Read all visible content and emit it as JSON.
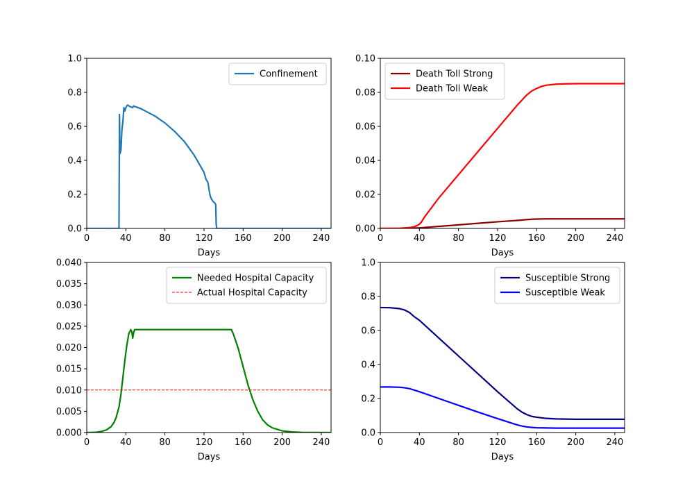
{
  "chart_data": [
    {
      "type": "line",
      "xlabel": "Days",
      "ylabel": "",
      "xlim": [
        0,
        250
      ],
      "ylim": [
        0,
        1.0
      ],
      "xticks": [
        0,
        40,
        80,
        120,
        160,
        200,
        240
      ],
      "yticks": [
        0.0,
        0.2,
        0.4,
        0.6,
        0.8,
        1.0
      ],
      "ytick_labels": [
        "0.0",
        "0.2",
        "0.4",
        "0.6",
        "0.8",
        "1.0"
      ],
      "legend": "top-right",
      "series": [
        {
          "name": "Confinement",
          "color": "#1f77b4",
          "dashed": false,
          "x": [
            0,
            33,
            33.5,
            34,
            35,
            36,
            37,
            38,
            39,
            40,
            41,
            42,
            43,
            45,
            47,
            48,
            50,
            55,
            60,
            70,
            80,
            90,
            100,
            110,
            115,
            120,
            122,
            124,
            126,
            127,
            128,
            129,
            130,
            131,
            132,
            132.5,
            133,
            160,
            200,
            250
          ],
          "y": [
            0,
            0,
            0.67,
            0.44,
            0.46,
            0.58,
            0.63,
            0.71,
            0.69,
            0.71,
            0.72,
            0.725,
            0.72,
            0.715,
            0.71,
            0.72,
            0.715,
            0.705,
            0.69,
            0.66,
            0.62,
            0.57,
            0.51,
            0.43,
            0.38,
            0.33,
            0.29,
            0.27,
            0.2,
            0.18,
            0.17,
            0.16,
            0.155,
            0.15,
            0.14,
            0.02,
            0,
            0,
            0,
            0
          ]
        }
      ]
    },
    {
      "type": "line",
      "xlabel": "Days",
      "ylabel": "",
      "xlim": [
        0,
        250
      ],
      "ylim": [
        0,
        0.1
      ],
      "xticks": [
        0,
        40,
        80,
        120,
        160,
        200,
        240
      ],
      "yticks": [
        0.0,
        0.02,
        0.04,
        0.06,
        0.08,
        0.1
      ],
      "ytick_labels": [
        "0.00",
        "0.02",
        "0.04",
        "0.06",
        "0.08",
        "0.10"
      ],
      "legend": "top-left",
      "series": [
        {
          "name": "Death Toll Strong",
          "color": "#8b0000",
          "dashed": false,
          "x": [
            0,
            20,
            30,
            40,
            60,
            80,
            100,
            120,
            140,
            155,
            160,
            170,
            180,
            200,
            250
          ],
          "y": [
            0,
            0,
            0.0001,
            0.0003,
            0.0012,
            0.0021,
            0.003,
            0.0039,
            0.0047,
            0.0054,
            0.0055,
            0.0056,
            0.0056,
            0.0056,
            0.0056
          ]
        },
        {
          "name": "Death Toll Weak",
          "color": "#ff0000",
          "dashed": false,
          "x": [
            0,
            20,
            30,
            35,
            38,
            40,
            42,
            45,
            60,
            80,
            100,
            120,
            140,
            150,
            155,
            160,
            165,
            170,
            180,
            190,
            200,
            250
          ],
          "y": [
            0,
            0.0001,
            0.0005,
            0.001,
            0.0018,
            0.0025,
            0.0037,
            0.0065,
            0.018,
            0.0316,
            0.0452,
            0.0588,
            0.0724,
            0.0785,
            0.0808,
            0.0823,
            0.0835,
            0.0842,
            0.0848,
            0.085,
            0.0851,
            0.0851
          ]
        }
      ]
    },
    {
      "type": "line",
      "xlabel": "Days",
      "ylabel": "",
      "xlim": [
        0,
        250
      ],
      "ylim": [
        0,
        0.04
      ],
      "xticks": [
        0,
        40,
        80,
        120,
        160,
        200,
        240
      ],
      "yticks": [
        0.0,
        0.005,
        0.01,
        0.015,
        0.02,
        0.025,
        0.03,
        0.035,
        0.04
      ],
      "ytick_labels": [
        "0.000",
        "0.005",
        "0.010",
        "0.015",
        "0.020",
        "0.025",
        "0.030",
        "0.035",
        "0.040"
      ],
      "legend": "top-right",
      "series": [
        {
          "name": "Needed Hospital Capacity",
          "color": "#008000",
          "dashed": false,
          "x": [
            0,
            10,
            15,
            20,
            25,
            28,
            30,
            33,
            35,
            37,
            39,
            41,
            43,
            45,
            46,
            47,
            48,
            49,
            50,
            80,
            100,
            120,
            140,
            148,
            150,
            155,
            160,
            165,
            170,
            175,
            180,
            185,
            190,
            200,
            210,
            220,
            230,
            250
          ],
          "y": [
            0,
            8e-05,
            0.00025,
            0.0006,
            0.0014,
            0.0024,
            0.0035,
            0.006,
            0.009,
            0.013,
            0.017,
            0.0205,
            0.0232,
            0.0242,
            0.0238,
            0.0222,
            0.0235,
            0.0242,
            0.0242,
            0.0242,
            0.0242,
            0.0242,
            0.0242,
            0.0242,
            0.0232,
            0.0198,
            0.0155,
            0.0112,
            0.0077,
            0.005,
            0.003,
            0.0018,
            0.0011,
            0.0004,
            0.00015,
            5e-05,
            2e-05,
            0
          ]
        },
        {
          "name": "Actual Hospital Capacity",
          "color": "#ff0000",
          "dashed": true,
          "x": [
            0,
            250
          ],
          "y": [
            0.01,
            0.01
          ]
        }
      ]
    },
    {
      "type": "line",
      "xlabel": "Days",
      "ylabel": "",
      "xlim": [
        0,
        250
      ],
      "ylim": [
        0,
        1.0
      ],
      "xticks": [
        0,
        40,
        80,
        120,
        160,
        200,
        240
      ],
      "yticks": [
        0.0,
        0.2,
        0.4,
        0.6,
        0.8,
        1.0
      ],
      "ytick_labels": [
        "0.0",
        "0.2",
        "0.4",
        "0.6",
        "0.8",
        "1.0"
      ],
      "legend": "top-right",
      "series": [
        {
          "name": "Susceptible Strong",
          "color": "#000080",
          "dashed": false,
          "x": [
            0,
            10,
            20,
            25,
            30,
            35,
            40,
            60,
            80,
            100,
            120,
            140,
            145,
            150,
            155,
            160,
            170,
            180,
            200,
            250
          ],
          "y": [
            0.735,
            0.734,
            0.728,
            0.72,
            0.705,
            0.68,
            0.66,
            0.555,
            0.45,
            0.345,
            0.24,
            0.14,
            0.12,
            0.105,
            0.095,
            0.09,
            0.083,
            0.08,
            0.078,
            0.078
          ]
        },
        {
          "name": "Susceptible Weak",
          "color": "#0000ff",
          "dashed": false,
          "x": [
            0,
            10,
            20,
            25,
            30,
            40,
            60,
            80,
            100,
            120,
            140,
            145,
            150,
            155,
            160,
            170,
            180,
            200,
            250
          ],
          "y": [
            0.268,
            0.268,
            0.266,
            0.263,
            0.258,
            0.24,
            0.2,
            0.16,
            0.12,
            0.082,
            0.045,
            0.038,
            0.033,
            0.03,
            0.028,
            0.027,
            0.026,
            0.026,
            0.026
          ]
        }
      ]
    }
  ]
}
